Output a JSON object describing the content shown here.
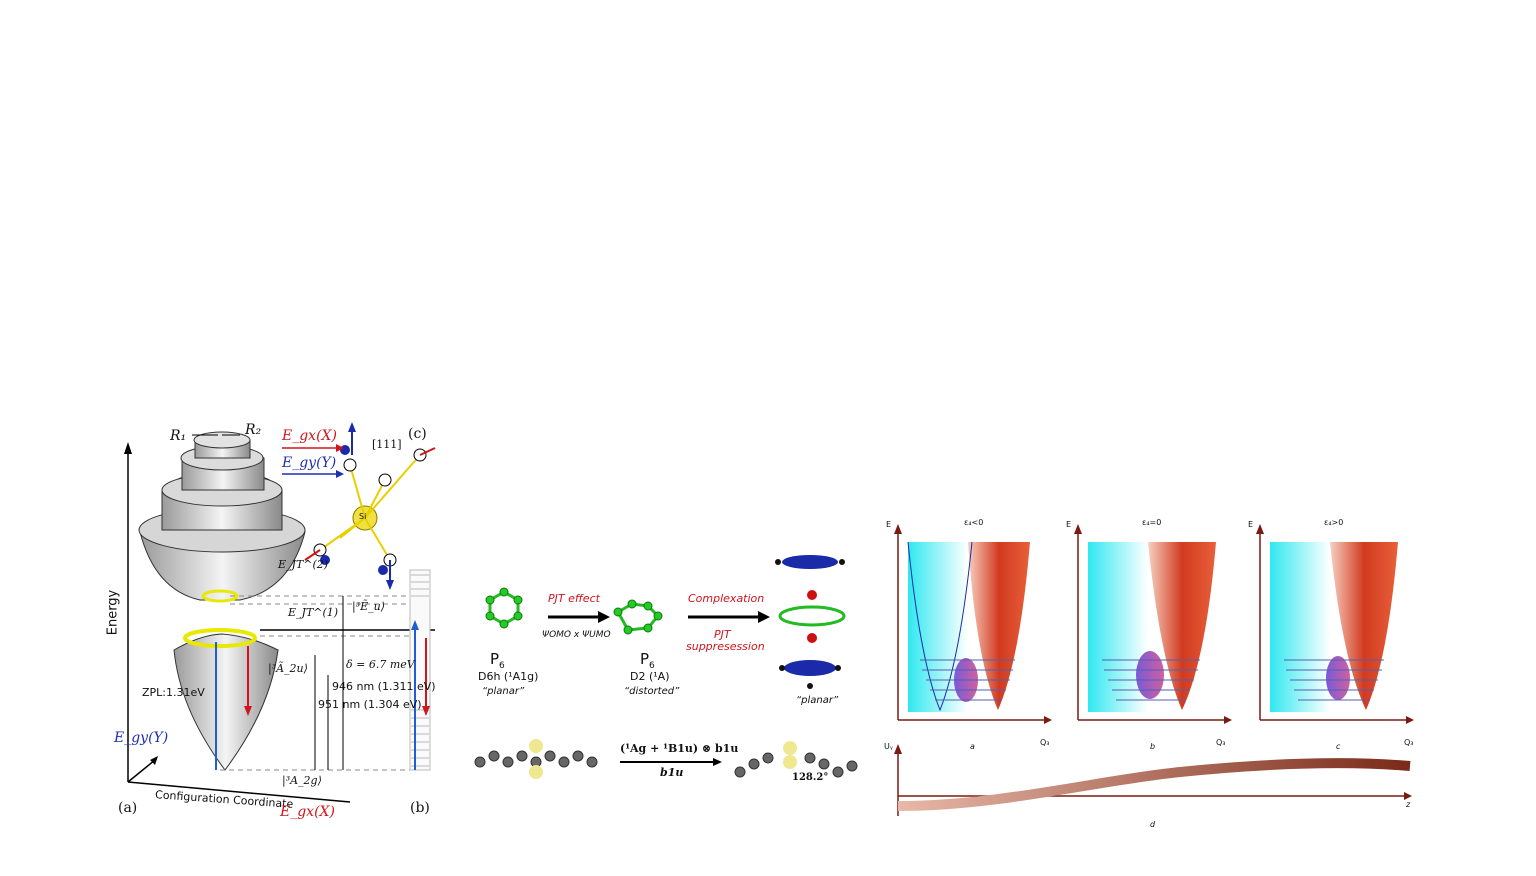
{
  "panel_a": {
    "y_axis": "Energy",
    "x_axis": "Configuration Coordinate",
    "r1": "R₁",
    "r2": "R₂",
    "egx_top": "E_gx(X)",
    "egy_top": "E_gy(Y)",
    "dir111": "[111]",
    "label_c": "(c)",
    "si": "Si",
    "ejt2": "E_JT^(2)",
    "ejt1": "E_JT^(1)",
    "eu_state": "|³Ẽ_u⟩",
    "a2u_state": "|³Ã_2u⟩",
    "delta": "δ = 6.7 meV",
    "nm946": "946 nm (1.311 eV)",
    "nm951": "951 nm (1.304 eV)",
    "zpl": "ZPL:1.31eV",
    "egy_left": "E_gy(Y)",
    "a2g_state": "|³A_2g⟩",
    "label_a": "(a)",
    "label_b": "(b)",
    "egx_bottom": "E_gx(X)"
  },
  "panel_b": {
    "p6_left": "P",
    "p6_left_sub": "6",
    "sym_left": "D6h (¹A1g)",
    "planar_left": "“planar”",
    "pjt_effect": "PJT effect",
    "psi": "ΨOMO x ΨUMO",
    "p6_mid": "P",
    "p6_mid_sub": "6",
    "sym_mid": "D2 (¹A)",
    "distorted": "“distorted”",
    "complexation": "Complexation",
    "pjt_supp_1": "PJT",
    "pjt_supp_2": "suppresession",
    "planar_right": "“planar”",
    "reaction_top": "(¹Ag + ¹B1u) ⊗ b1u",
    "reaction_bottom": "b1u",
    "angle": "128.2°"
  },
  "panel_c": {
    "plots": [
      {
        "eps": "ε₄<0",
        "letter": "a"
      },
      {
        "eps": "ε₄=0",
        "letter": "b"
      },
      {
        "eps": "ε₄>0",
        "letter": "c"
      }
    ],
    "e_axis": "E",
    "q_axis": "Q₃",
    "u_axis": "Uᵧ",
    "z_axis": "z",
    "d_label": "d"
  },
  "colors": {
    "red_arrow": "#d0151b",
    "blue_arrow": "#1f5fd0",
    "dark_red_axis": "#7a1a12",
    "green_ring": "#22bb22",
    "yellow_ring": "#e6e600"
  }
}
